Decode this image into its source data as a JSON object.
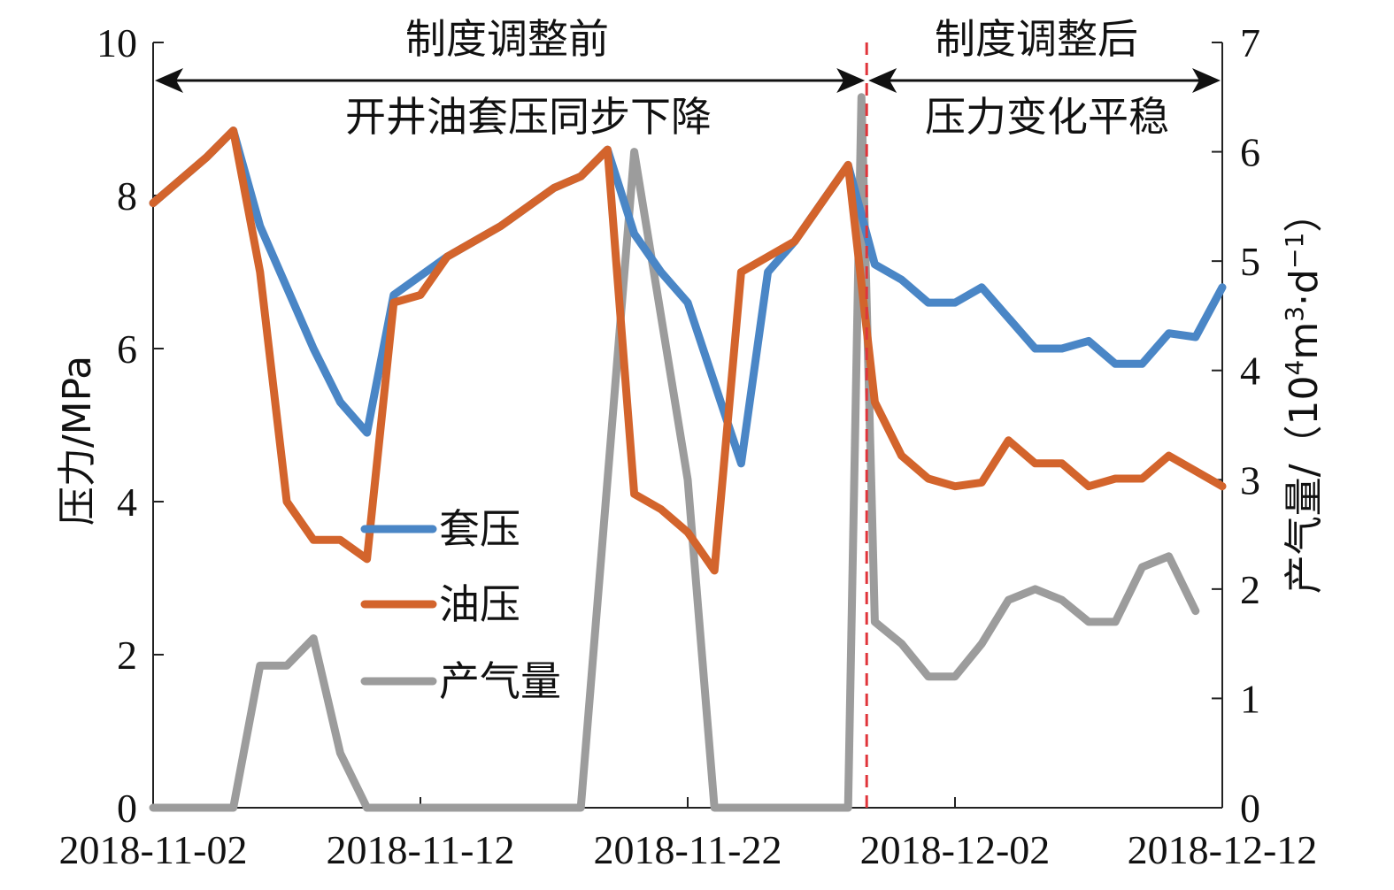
{
  "chart_data": {
    "type": "line",
    "x_tick_labels": [
      "2018-11-02",
      "2018-11-12",
      "2018-11-22",
      "2018-12-02",
      "2018-12-12"
    ],
    "y_left": {
      "label": "压力/MPa",
      "ylim": [
        0,
        10
      ],
      "ticks": [
        "0",
        "2",
        "4",
        "6",
        "8",
        "10"
      ]
    },
    "y_right": {
      "label_parts": [
        "产气量/（10",
        "4",
        "m",
        "3",
        "·d",
        "−1",
        "）"
      ],
      "ylim": [
        0,
        7
      ],
      "ticks": [
        "0",
        "1",
        "2",
        "3",
        "4",
        "5",
        "6",
        "7"
      ]
    },
    "x_range": [
      "2018-11-02",
      "2018-12-12"
    ],
    "divider_date": "2018-11-28",
    "annotations": {
      "before_title": "制度调整前",
      "before_note": "开井油套压同步下降",
      "after_title": "制度调整后",
      "after_note": "压力变化平稳"
    },
    "colors": {
      "casing": "#4a86c6",
      "tubing": "#d3642c",
      "gas": "#9c9c9c",
      "divider": "#e0353b"
    },
    "series": [
      {
        "name": "套压",
        "axis": "left",
        "points": [
          [
            "2018-11-02",
            7.9
          ],
          [
            "2018-11-04",
            8.5
          ],
          [
            "2018-11-05",
            8.85
          ],
          [
            "2018-11-06",
            7.6
          ],
          [
            "2018-11-08",
            6.0
          ],
          [
            "2018-11-09",
            5.3
          ],
          [
            "2018-11-10",
            4.9
          ],
          [
            "2018-11-11",
            6.7
          ],
          [
            "2018-11-13",
            7.2
          ],
          [
            "2018-11-15",
            7.6
          ],
          [
            "2018-11-17",
            8.1
          ],
          [
            "2018-11-18",
            8.25
          ],
          [
            "2018-11-19",
            8.6
          ],
          [
            "2018-11-20",
            7.5
          ],
          [
            "2018-11-21",
            7.0
          ],
          [
            "2018-11-22",
            6.6
          ],
          [
            "2018-11-24",
            4.5
          ],
          [
            "2018-11-25",
            7.0
          ],
          [
            "2018-11-26",
            7.4
          ],
          [
            "2018-11-27",
            7.9
          ],
          [
            "2018-11-28",
            8.4
          ],
          [
            "2018-11-29",
            7.1
          ],
          [
            "2018-11-30",
            6.9
          ],
          [
            "2018-12-01",
            6.6
          ],
          [
            "2018-12-02",
            6.6
          ],
          [
            "2018-12-03",
            6.8
          ],
          [
            "2018-12-04",
            6.4
          ],
          [
            "2018-12-05",
            6.0
          ],
          [
            "2018-12-06",
            6.0
          ],
          [
            "2018-12-07",
            6.1
          ],
          [
            "2018-12-08",
            5.8
          ],
          [
            "2018-12-09",
            5.8
          ],
          [
            "2018-12-10",
            6.2
          ],
          [
            "2018-12-11",
            6.15
          ],
          [
            "2018-12-12",
            6.8
          ]
        ]
      },
      {
        "name": "油压",
        "axis": "left",
        "points": [
          [
            "2018-11-02",
            7.9
          ],
          [
            "2018-11-04",
            8.5
          ],
          [
            "2018-11-05",
            8.85
          ],
          [
            "2018-11-06",
            7.0
          ],
          [
            "2018-11-07",
            4.0
          ],
          [
            "2018-11-08",
            3.5
          ],
          [
            "2018-11-09",
            3.5
          ],
          [
            "2018-11-10",
            3.25
          ],
          [
            "2018-11-11",
            6.6
          ],
          [
            "2018-11-12",
            6.7
          ],
          [
            "2018-11-13",
            7.2
          ],
          [
            "2018-11-15",
            7.6
          ],
          [
            "2018-11-17",
            8.1
          ],
          [
            "2018-11-18",
            8.25
          ],
          [
            "2018-11-19",
            8.6
          ],
          [
            "2018-11-20",
            4.1
          ],
          [
            "2018-11-21",
            3.9
          ],
          [
            "2018-11-22",
            3.6
          ],
          [
            "2018-11-23",
            3.1
          ],
          [
            "2018-11-24",
            7.0
          ],
          [
            "2018-11-26",
            7.4
          ],
          [
            "2018-11-28",
            8.4
          ],
          [
            "2018-11-29",
            5.3
          ],
          [
            "2018-11-30",
            4.6
          ],
          [
            "2018-12-01",
            4.3
          ],
          [
            "2018-12-02",
            4.2
          ],
          [
            "2018-12-03",
            4.25
          ],
          [
            "2018-12-04",
            4.8
          ],
          [
            "2018-12-05",
            4.5
          ],
          [
            "2018-12-06",
            4.5
          ],
          [
            "2018-12-07",
            4.2
          ],
          [
            "2018-12-08",
            4.3
          ],
          [
            "2018-12-09",
            4.3
          ],
          [
            "2018-12-10",
            4.6
          ],
          [
            "2018-12-11",
            4.4
          ],
          [
            "2018-12-12",
            4.2
          ]
        ]
      },
      {
        "name": "产气量",
        "axis": "right",
        "points": [
          [
            "2018-11-02",
            0
          ],
          [
            "2018-11-05",
            0
          ],
          [
            "2018-11-06",
            1.3
          ],
          [
            "2018-11-07",
            1.3
          ],
          [
            "2018-11-08",
            1.55
          ],
          [
            "2018-11-09",
            0.5
          ],
          [
            "2018-11-10",
            0
          ],
          [
            "2018-11-18",
            0
          ],
          [
            "2018-11-20",
            6.0
          ],
          [
            "2018-11-22",
            3.0
          ],
          [
            "2018-11-23",
            0
          ],
          [
            "2018-11-28",
            0
          ],
          [
            "2018-11-28.5",
            6.5
          ],
          [
            "2018-11-29",
            1.7
          ],
          [
            "2018-11-30",
            1.5
          ],
          [
            "2018-12-01",
            1.2
          ],
          [
            "2018-12-02",
            1.2
          ],
          [
            "2018-12-03",
            1.5
          ],
          [
            "2018-12-04",
            1.9
          ],
          [
            "2018-12-05",
            2.0
          ],
          [
            "2018-12-06",
            1.9
          ],
          [
            "2018-12-07",
            1.7
          ],
          [
            "2018-12-08",
            1.7
          ],
          [
            "2018-12-09",
            2.2
          ],
          [
            "2018-12-10",
            2.3
          ],
          [
            "2018-12-11",
            1.8
          ]
        ]
      }
    ]
  }
}
